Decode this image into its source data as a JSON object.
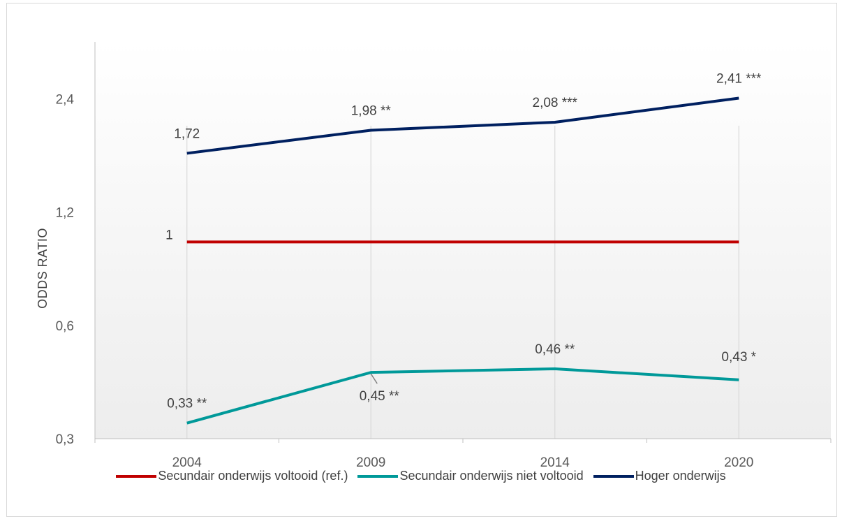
{
  "chart_data": {
    "type": "line",
    "categories": [
      "2004",
      "2009",
      "2014",
      "2020"
    ],
    "ylabel": "ODDS RATIO",
    "xlabel": "",
    "title": "",
    "y_scale": "log",
    "ylim": [
      0.3,
      3.4
    ],
    "y_ticks": [
      0.3,
      0.6,
      1.2,
      2.4
    ],
    "y_tick_labels": [
      "0,3",
      "0,6",
      "1,2",
      "2,4"
    ],
    "grid": "vertical",
    "legend_position": "bottom",
    "series": [
      {
        "name": "Secundair onderwijs voltooid (ref.)",
        "color": "#c00000",
        "values": [
          1,
          1,
          1,
          1
        ],
        "labels": [
          "1",
          "",
          "",
          ""
        ]
      },
      {
        "name": "Secundair onderwijs niet voltooid",
        "color": "#009999",
        "values": [
          0.33,
          0.45,
          0.46,
          0.43
        ],
        "labels": [
          "0,33 **",
          "0,45 **",
          "0,46 **",
          "0,43 *"
        ]
      },
      {
        "name": "Hoger onderwijs",
        "color": "#002060",
        "values": [
          1.72,
          1.98,
          2.08,
          2.41
        ],
        "labels": [
          "1,72",
          "1,98 **",
          "2,08 ***",
          "2,41 ***"
        ]
      }
    ]
  }
}
